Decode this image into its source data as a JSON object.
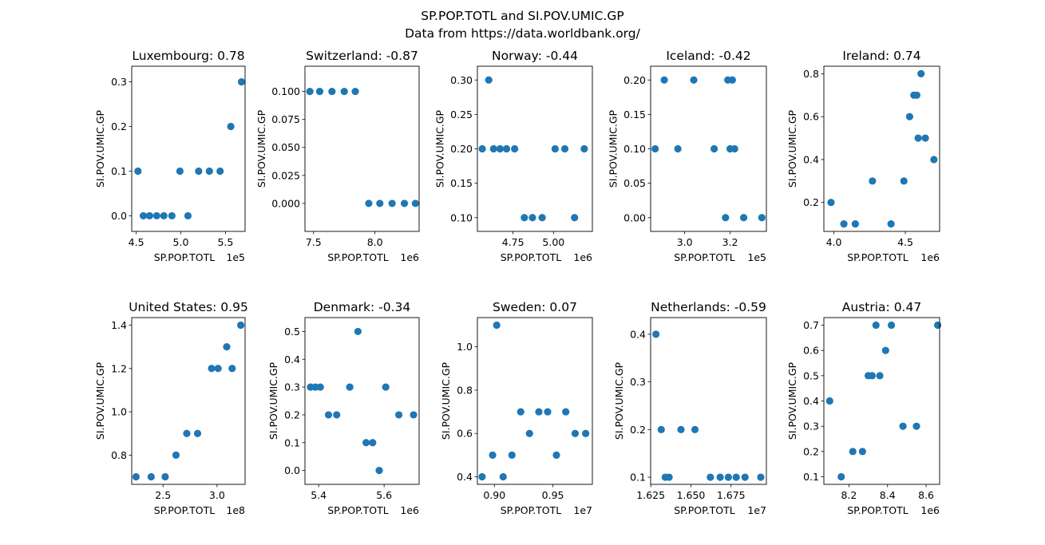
{
  "figure": {
    "title": "SP.POP.TOTL and SI.POV.UMIC.GP",
    "subtitle": "Data from https://data.worldbank.org/"
  },
  "colors": {
    "marker": "#1f77b4"
  },
  "chart_data": [
    {
      "type": "scatter",
      "title": "Luxembourg: 0.78",
      "xlabel": "SP.POP.TOTL",
      "ylabel": "SI.POV.UMIC.GP",
      "x_offset_label": "1e5",
      "xlim": [
        4.45,
        5.72
      ],
      "ylim": [
        -0.035,
        0.335
      ],
      "xticks": [
        4.5,
        5.0,
        5.5
      ],
      "xtick_labels": [
        "4.5",
        "5.0",
        "5.5"
      ],
      "yticks": [
        0.0,
        0.1,
        0.2,
        0.3
      ],
      "ytick_labels": [
        "0.0",
        "0.1",
        "0.2",
        "0.3"
      ],
      "x": [
        4.52,
        4.58,
        4.65,
        4.73,
        4.81,
        4.9,
        4.99,
        5.08,
        5.2,
        5.32,
        5.44,
        5.56,
        5.68
      ],
      "y": [
        0.1,
        0.0,
        0.0,
        0.0,
        0.0,
        0.0,
        0.1,
        0.0,
        0.1,
        0.1,
        0.1,
        0.2,
        0.3
      ]
    },
    {
      "type": "scatter",
      "title": "Switzerland: -0.87",
      "xlabel": "SP.POP.TOTL",
      "ylabel": "SI.POV.UMIC.GP",
      "x_offset_label": "1e6",
      "xlim": [
        7.43,
        8.36
      ],
      "ylim": [
        -0.025,
        0.1225
      ],
      "xticks": [
        7.5,
        8.0
      ],
      "xtick_labels": [
        "7.5",
        "8.0"
      ],
      "yticks": [
        0.0,
        0.025,
        0.05,
        0.075,
        0.1
      ],
      "ytick_labels": [
        "0.000",
        "0.025",
        "0.050",
        "0.075",
        "0.100"
      ],
      "x": [
        7.47,
        7.55,
        7.65,
        7.75,
        7.84,
        7.95,
        8.04,
        8.14,
        8.24,
        8.33
      ],
      "y": [
        0.1,
        0.1,
        0.1,
        0.1,
        0.1,
        0.0,
        0.0,
        0.0,
        0.0,
        0.0
      ]
    },
    {
      "type": "scatter",
      "title": "Norway: -0.44",
      "xlabel": "SP.POP.TOTL",
      "ylabel": "SI.POV.UMIC.GP",
      "x_offset_label": "1e6",
      "xlim": [
        4.53,
        5.24
      ],
      "ylim": [
        0.08,
        0.32
      ],
      "xticks": [
        4.75,
        5.0
      ],
      "xtick_labels": [
        "4.75",
        "5.00"
      ],
      "yticks": [
        0.1,
        0.15,
        0.2,
        0.25,
        0.3
      ],
      "ytick_labels": [
        "0.10",
        "0.15",
        "0.20",
        "0.25",
        "0.30"
      ],
      "x": [
        4.56,
        4.6,
        4.63,
        4.67,
        4.71,
        4.76,
        4.82,
        4.87,
        4.93,
        5.01,
        5.07,
        5.13,
        5.19
      ],
      "y": [
        0.2,
        0.3,
        0.2,
        0.2,
        0.2,
        0.2,
        0.1,
        0.1,
        0.1,
        0.2,
        0.2,
        0.1,
        0.2
      ]
    },
    {
      "type": "scatter",
      "title": "Iceland: -0.42",
      "xlabel": "SP.POP.TOTL",
      "ylabel": "SI.POV.UMIC.GP",
      "x_offset_label": "1e5",
      "xlim": [
        2.85,
        3.36
      ],
      "ylim": [
        -0.02,
        0.22
      ],
      "xticks": [
        3.0,
        3.2
      ],
      "xtick_labels": [
        "3.0",
        "3.2"
      ],
      "yticks": [
        0.0,
        0.05,
        0.1,
        0.15,
        0.2
      ],
      "ytick_labels": [
        "0.00",
        "0.05",
        "0.10",
        "0.15",
        "0.20"
      ],
      "x": [
        2.87,
        2.91,
        2.97,
        3.04,
        3.13,
        3.18,
        3.19,
        3.2,
        3.21,
        3.22,
        3.26,
        3.34
      ],
      "y": [
        0.1,
        0.2,
        0.1,
        0.2,
        0.1,
        0.0,
        0.2,
        0.1,
        0.2,
        0.1,
        0.0,
        0.0
      ]
    },
    {
      "type": "scatter",
      "title": "Ireland: 0.74",
      "xlabel": "SP.POP.TOTL",
      "ylabel": "SI.POV.UMIC.GP",
      "x_offset_label": "1e6",
      "xlim": [
        3.93,
        4.74
      ],
      "ylim": [
        0.065,
        0.835
      ],
      "xticks": [
        4.0,
        4.5
      ],
      "xtick_labels": [
        "4.0",
        "4.5"
      ],
      "yticks": [
        0.2,
        0.4,
        0.6,
        0.8
      ],
      "ytick_labels": [
        "0.2",
        "0.4",
        "0.6",
        "0.8"
      ],
      "x": [
        3.98,
        4.07,
        4.15,
        4.27,
        4.4,
        4.49,
        4.53,
        4.56,
        4.58,
        4.59,
        4.61,
        4.64,
        4.7
      ],
      "y": [
        0.2,
        0.1,
        0.1,
        0.3,
        0.1,
        0.3,
        0.6,
        0.7,
        0.7,
        0.5,
        0.8,
        0.5,
        0.4
      ]
    },
    {
      "type": "scatter",
      "title": "United States: 0.95",
      "xlabel": "SP.POP.TOTL",
      "ylabel": "SI.POV.UMIC.GP",
      "x_offset_label": "1e8",
      "xlim": [
        2.21,
        3.26
      ],
      "ylim": [
        0.665,
        1.435
      ],
      "xticks": [
        2.5,
        3.0
      ],
      "xtick_labels": [
        "2.5",
        "3.0"
      ],
      "yticks": [
        0.8,
        1.0,
        1.2,
        1.4
      ],
      "ytick_labels": [
        "0.8",
        "1.0",
        "1.2",
        "1.4"
      ],
      "x": [
        2.25,
        2.39,
        2.52,
        2.62,
        2.72,
        2.82,
        2.95,
        3.01,
        3.09,
        3.14,
        3.22
      ],
      "y": [
        0.7,
        0.7,
        0.7,
        0.8,
        0.9,
        0.9,
        1.2,
        1.2,
        1.3,
        1.2,
        1.4
      ]
    },
    {
      "type": "scatter",
      "title": "Denmark: -0.34",
      "xlabel": "SP.POP.TOTL",
      "ylabel": "SI.POV.UMIC.GP",
      "x_offset_label": "1e6",
      "xlim": [
        5.358,
        5.707
      ],
      "ylim": [
        -0.05,
        0.55
      ],
      "xticks": [
        5.4,
        5.6
      ],
      "xtick_labels": [
        "5.4",
        "5.6"
      ],
      "yticks": [
        0.0,
        0.1,
        0.2,
        0.3,
        0.4,
        0.5
      ],
      "ytick_labels": [
        "0.0",
        "0.1",
        "0.2",
        "0.3",
        "0.4",
        "0.5"
      ],
      "x": [
        5.375,
        5.39,
        5.405,
        5.43,
        5.455,
        5.495,
        5.52,
        5.545,
        5.565,
        5.585,
        5.605,
        5.645,
        5.69
      ],
      "y": [
        0.3,
        0.3,
        0.3,
        0.2,
        0.2,
        0.3,
        0.5,
        0.1,
        0.1,
        0.0,
        0.3,
        0.2,
        0.2
      ]
    },
    {
      "type": "scatter",
      "title": "Sweden: 0.07",
      "xlabel": "SP.POP.TOTL",
      "ylabel": "SI.POV.UMIC.GP",
      "x_offset_label": "1e7",
      "xlim": [
        0.8855,
        0.9837
      ],
      "ylim": [
        0.365,
        1.135
      ],
      "xticks": [
        0.9,
        0.95
      ],
      "xtick_labels": [
        "0.90",
        "0.95"
      ],
      "yticks": [
        0.4,
        0.6,
        0.8,
        1.0
      ],
      "ytick_labels": [
        "0.4",
        "0.6",
        "0.8",
        "1.0"
      ],
      "x": [
        0.8895,
        0.8985,
        0.902,
        0.9075,
        0.915,
        0.9225,
        0.93,
        0.938,
        0.9455,
        0.953,
        0.961,
        0.969,
        0.978
      ],
      "y": [
        0.4,
        0.5,
        1.1,
        0.4,
        0.5,
        0.7,
        0.6,
        0.7,
        0.7,
        0.5,
        0.7,
        0.6,
        0.6
      ]
    },
    {
      "type": "scatter",
      "title": "Netherlands: -0.59",
      "xlabel": "SP.POP.TOTL",
      "ylabel": "SI.POV.UMIC.GP",
      "x_offset_label": "1e7",
      "xlim": [
        1.6249,
        1.697
      ],
      "ylim": [
        0.085,
        0.435
      ],
      "xticks": [
        1.625,
        1.65,
        1.675
      ],
      "xtick_labels": [
        "1.625",
        "1.650",
        "1.675"
      ],
      "yticks": [
        0.1,
        0.2,
        0.3,
        0.4
      ],
      "ytick_labels": [
        "0.1",
        "0.2",
        "0.3",
        "0.4"
      ],
      "x": [
        1.6282,
        1.6315,
        1.634,
        1.6364,
        1.6438,
        1.6525,
        1.6621,
        1.6682,
        1.6733,
        1.6782,
        1.6837,
        1.6935
      ],
      "y": [
        0.4,
        0.2,
        0.1,
        0.1,
        0.2,
        0.2,
        0.1,
        0.1,
        0.1,
        0.1,
        0.1,
        0.1
      ]
    },
    {
      "type": "scatter",
      "title": "Austria: 0.47",
      "xlabel": "SP.POP.TOTL",
      "ylabel": "SI.POV.UMIC.GP",
      "x_offset_label": "1e6",
      "xlim": [
        8.07,
        8.67
      ],
      "ylim": [
        0.07,
        0.73
      ],
      "xticks": [
        8.2,
        8.4,
        8.6
      ],
      "xtick_labels": [
        "8.2",
        "8.4",
        "8.6"
      ],
      "yticks": [
        0.1,
        0.2,
        0.3,
        0.4,
        0.5,
        0.6,
        0.7
      ],
      "ytick_labels": [
        "0.1",
        "0.2",
        "0.3",
        "0.4",
        "0.5",
        "0.6",
        "0.7"
      ],
      "x": [
        8.1,
        8.16,
        8.22,
        8.27,
        8.3,
        8.32,
        8.34,
        8.36,
        8.39,
        8.42,
        8.48,
        8.55,
        8.66
      ],
      "y": [
        0.4,
        0.1,
        0.2,
        0.2,
        0.5,
        0.5,
        0.7,
        0.5,
        0.6,
        0.7,
        0.3,
        0.3,
        0.7
      ]
    }
  ]
}
